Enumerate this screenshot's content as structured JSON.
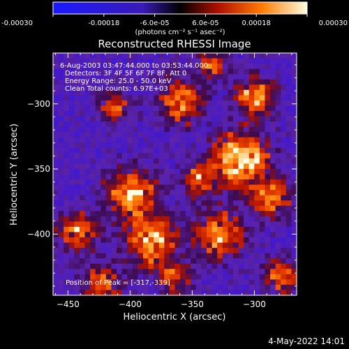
{
  "chart_data": {
    "type": "heatmap",
    "title": "Reconstructed RHESSI Image",
    "xlabel": "Heliocentric X (arcsec)",
    "ylabel": "Heliocentric Y (arcsec)",
    "x_range": [
      -462,
      -266
    ],
    "y_range": [
      -447,
      -261
    ],
    "x_ticks": [
      -450,
      -400,
      -350,
      -300
    ],
    "y_ticks": [
      -300,
      -350,
      -400
    ],
    "colorbar": {
      "range": [
        -0.0003,
        0.0003
      ],
      "tick_labels": [
        "-0.00030",
        "-0.00018",
        "-6.0e-05",
        "6.0e-05",
        "0.00018",
        "0.00030"
      ],
      "unit_label": "(photons cm⁻² s⁻¹ asec⁻²)"
    },
    "annotations": {
      "time": "6-Aug-2003 03:47:44.000 to 03:53:44.000",
      "detectors": "Detectors: 3F 4F 5F 6F 7F 8F, Att 0",
      "energy": "Energy Range: 25.0 - 50.0 keV",
      "method": "Clean     Total counts: 6.97E+03",
      "peak": "Position of Peak = [-317,-339]"
    },
    "peak": {
      "x": -317,
      "y": -339
    }
  },
  "footer": {
    "date": "4-May-2022 14:01"
  },
  "colors": {
    "background": "#000000",
    "axes": "#ffffff"
  }
}
